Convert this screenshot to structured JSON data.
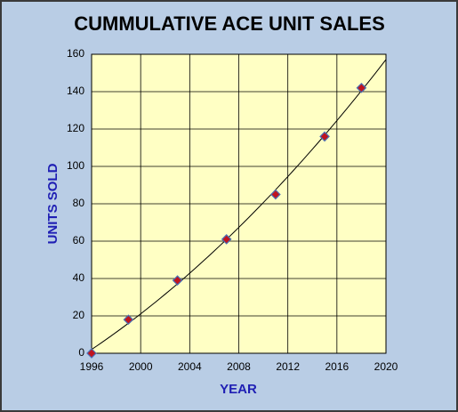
{
  "chart_data": {
    "type": "scatter",
    "title": "CUMMULATIVE ACE UNIT SALES",
    "x_label": "YEAR",
    "y_label": "UNITS SOLD",
    "series": [
      {
        "name": "Units sold",
        "color": "#c0141e",
        "x": [
          1996,
          1999,
          2003,
          2007,
          2011,
          2015,
          2018
        ],
        "values": [
          0,
          18,
          39,
          61,
          85,
          116,
          142
        ]
      }
    ],
    "xlim": [
      1996,
      2020
    ],
    "xticks": [
      1996,
      2000,
      2004,
      2008,
      2012,
      2016,
      2020
    ],
    "ylim": [
      0,
      160
    ],
    "yticks": [
      0,
      20,
      40,
      60,
      80,
      100,
      120,
      140,
      160
    ],
    "grid": true,
    "trendline": "polynomial"
  }
}
